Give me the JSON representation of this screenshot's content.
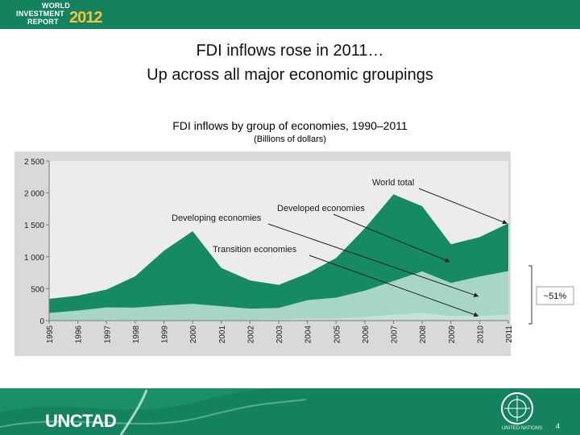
{
  "branding": {
    "logo_line1": "WORLD",
    "logo_line2": "INVESTMENT",
    "logo_line3": "REPORT",
    "logo_year": "2012",
    "org": "UNCTAD",
    "un_label": "UNITED NATIONS",
    "page_number": "4",
    "colors": {
      "bar": "#15825f",
      "year": "#f4c43c"
    }
  },
  "slide": {
    "headline1": "FDI inflows rose in 2011…",
    "headline2": "Up across all major economic groupings"
  },
  "chart_data": {
    "type": "area",
    "title": "FDI inflows by group of economies, 1990–2011",
    "subtitle": "(Billions of dollars)",
    "x": [
      "1995",
      "1996",
      "1997",
      "1998",
      "1999",
      "2000",
      "2001",
      "2002",
      "2003",
      "2004",
      "2005",
      "2006",
      "2007",
      "2008",
      "2009",
      "2010",
      "2011"
    ],
    "ylim": [
      0,
      2500
    ],
    "yticks": [
      0,
      500,
      1000,
      1500,
      2000,
      2500
    ],
    "ytick_labels": [
      "0",
      "500",
      "1 000",
      "1 500",
      "2 000",
      "2 500"
    ],
    "grid": false,
    "series": [
      {
        "name": "Transition economies",
        "values": [
          5,
          6,
          16,
          10,
          10,
          7,
          8,
          11,
          20,
          30,
          31,
          55,
          91,
          121,
          72,
          74,
          92
        ],
        "color": "#c3e2d6"
      },
      {
        "name": "Developing economies",
        "values": [
          115,
          152,
          191,
          193,
          229,
          256,
          218,
          176,
          179,
          290,
          329,
          413,
          529,
          650,
          519,
          617,
          684
        ],
        "color": "#a7d6c4"
      },
      {
        "name": "Developed economies",
        "values": [
          221,
          233,
          279,
          491,
          856,
          1138,
          599,
          443,
          361,
          418,
          622,
          977,
          1359,
          1022,
          606,
          618,
          748
        ],
        "color": "#168a63"
      }
    ],
    "total": {
      "name": "World total",
      "values": [
        341,
        391,
        486,
        694,
        1095,
        1401,
        825,
        630,
        560,
        738,
        982,
        1445,
        1979,
        1793,
        1197,
        1309,
        1524
      ]
    },
    "annotations": [
      {
        "text": "World total",
        "target_year": "2011"
      },
      {
        "text": "Developed economies",
        "target_year": "2009"
      },
      {
        "text": "Developing economies",
        "target_year": "2010"
      },
      {
        "text": "Transition economies",
        "target_year": "2010"
      }
    ],
    "brace_label": "~51%"
  }
}
